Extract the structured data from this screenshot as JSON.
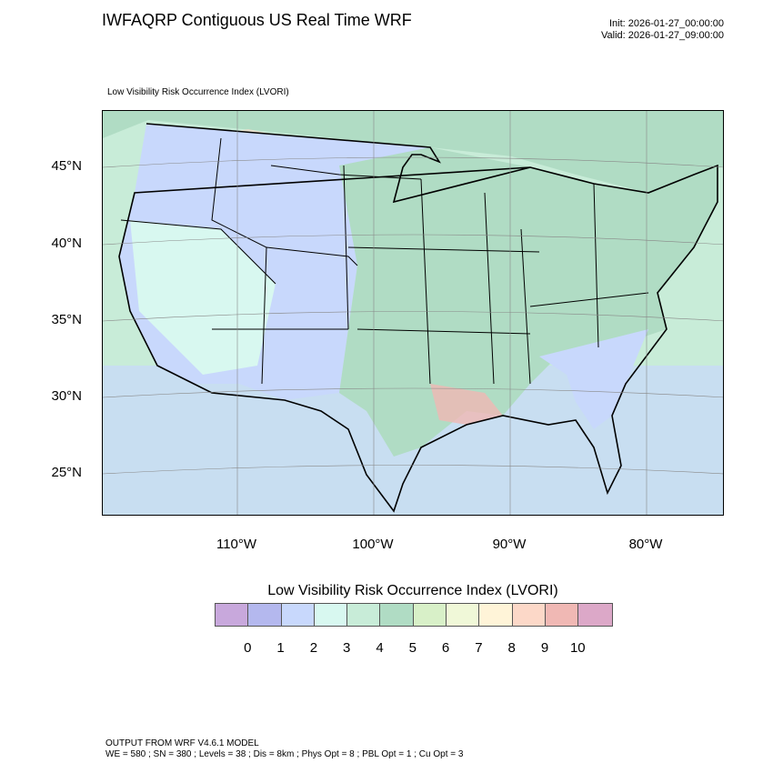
{
  "header": {
    "title": "IWFAQRP Contiguous US Real Time WRF",
    "init": "Init: 2026-01-27_00:00:00",
    "valid": "Valid: 2026-01-27_09:00:00"
  },
  "map": {
    "field_label": "Low Visibility Risk Occurrence Index   (LVORI)",
    "lat_labels": [
      "45°N",
      "40°N",
      "35°N",
      "30°N",
      "25°N"
    ],
    "lon_labels": [
      "110°W",
      "100°W",
      "90°W",
      "80°W"
    ]
  },
  "colorbar": {
    "title": "Low Visibility Risk Occurrence Index  (LVORI)",
    "colors": [
      "#c8a8dc",
      "#b4b8ee",
      "#c8d8fc",
      "#d8f8f0",
      "#c8ecd8",
      "#b0dcc4",
      "#d8f0c8",
      "#f0f8d8",
      "#fff4d8",
      "#fcd8c8",
      "#f0b8b4",
      "#dca8c8"
    ],
    "labels": [
      "0",
      "1",
      "2",
      "3",
      "4",
      "5",
      "6",
      "7",
      "8",
      "9",
      "10"
    ]
  },
  "footer": {
    "line1": "OUTPUT FROM WRF V4.6.1 MODEL",
    "line2": "WE = 580 ; SN = 380 ; Levels = 38 ; Dis = 8km ; Phys Opt = 8 ; PBL Opt = 1 ; Cu Opt = 3"
  }
}
